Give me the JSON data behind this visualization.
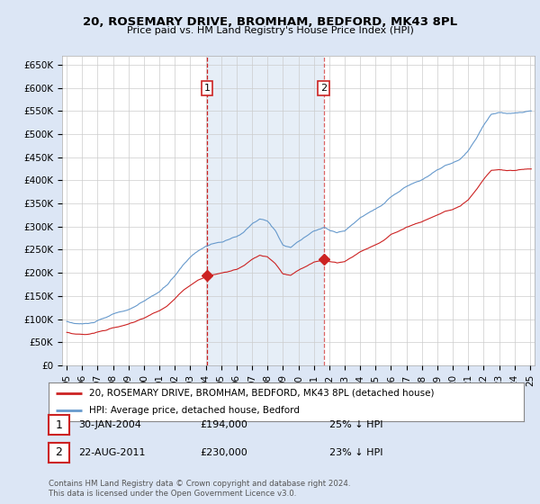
{
  "title": "20, ROSEMARY DRIVE, BROMHAM, BEDFORD, MK43 8PL",
  "subtitle": "Price paid vs. HM Land Registry's House Price Index (HPI)",
  "ylabel_ticks": [
    "£0",
    "£50K",
    "£100K",
    "£150K",
    "£200K",
    "£250K",
    "£300K",
    "£350K",
    "£400K",
    "£450K",
    "£500K",
    "£550K",
    "£600K",
    "£650K"
  ],
  "ytick_values": [
    0,
    50000,
    100000,
    150000,
    200000,
    250000,
    300000,
    350000,
    400000,
    450000,
    500000,
    550000,
    600000,
    650000
  ],
  "ylim": [
    0,
    670000
  ],
  "background_color": "#dce6f5",
  "plot_bg": "#ffffff",
  "hpi_color": "#6699cc",
  "price_color": "#cc2222",
  "shade_color": "#dce8f5",
  "marker1_date": 2004.08,
  "marker1_value": 194000,
  "marker1_label": "1",
  "marker1_hpi_pct": "25% ↓ HPI",
  "marker1_date_str": "30-JAN-2004",
  "marker2_date": 2011.65,
  "marker2_value": 230000,
  "marker2_label": "2",
  "marker2_hpi_pct": "23% ↓ HPI",
  "marker2_date_str": "22-AUG-2011",
  "legend_address": "20, ROSEMARY DRIVE, BROMHAM, BEDFORD, MK43 8PL (detached house)",
  "legend_hpi": "HPI: Average price, detached house, Bedford",
  "footnote": "Contains HM Land Registry data © Crown copyright and database right 2024.\nThis data is licensed under the Open Government Licence v3.0.",
  "xmin": 1995,
  "xmax": 2025
}
